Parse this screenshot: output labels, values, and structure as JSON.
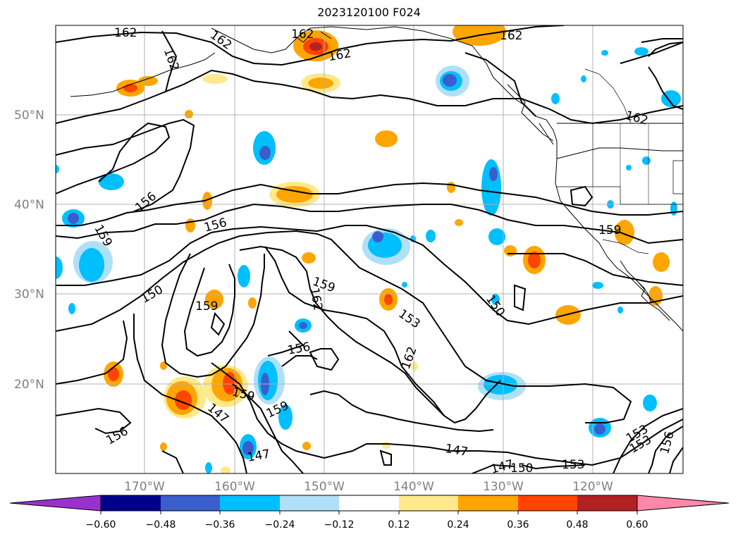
{
  "title": "2023120100 F024",
  "lat_labels": [
    "50°N",
    "40°N",
    "30°N",
    "20°N"
  ],
  "lon_labels": [
    "170°W",
    "160°W",
    "150°W",
    "140°W",
    "130°W",
    "120°W"
  ],
  "contour_labels": [
    "162",
    "162",
    "162",
    "162",
    "162",
    "162",
    "162",
    "156",
    "156",
    "159",
    "150",
    "159",
    "162",
    "159",
    "153",
    "156",
    "162",
    "150",
    "159",
    "159",
    "147",
    "159",
    "156",
    "147",
    "147",
    "147",
    "150",
    "153",
    "153",
    "153",
    "156",
    "159"
  ],
  "colorbar": {
    "colors": [
      "#9932cc",
      "#00008b",
      "#3a5fcd",
      "#00bfff",
      "#afe0f7",
      "#ffffff",
      "#ffe98a",
      "#ffa500",
      "#ff4500",
      "#b22222",
      "#ff88aa"
    ],
    "tick_labels": [
      "−0.60",
      "−0.48",
      "−0.36",
      "−0.24",
      "−0.12",
      "0.12",
      "0.24",
      "0.36",
      "0.48",
      "0.60"
    ]
  }
}
